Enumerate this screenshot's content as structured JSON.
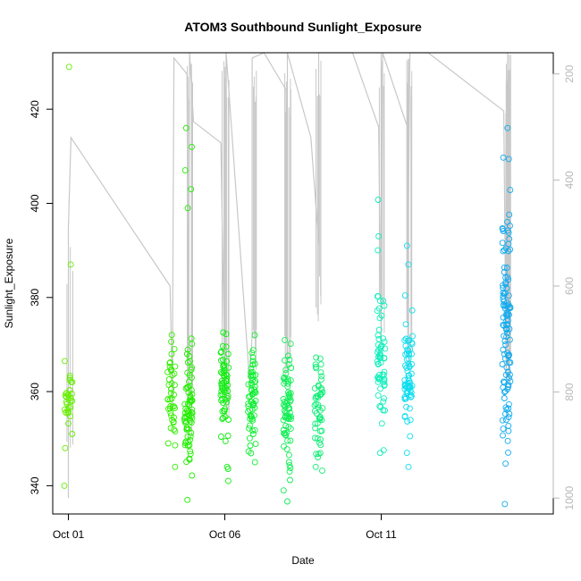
{
  "chart_data": {
    "type": "scatter",
    "title": "ATOM3 Southbound Sunlight_Exposure",
    "xlabel": "Date",
    "ylabel": "Sunlight_Exposure",
    "ylim": [
      334,
      432
    ],
    "xlim_days": [
      "2023-09-30T12:00",
      "2023-10-16T12:00"
    ],
    "x_ticks": [
      {
        "date": "2023-10-01T00:00",
        "label": "Oct 01"
      },
      {
        "date": "2023-10-06T00:00",
        "label": "Oct 06"
      },
      {
        "date": "2023-10-11T00:00",
        "label": "Oct 11"
      }
    ],
    "y_ticks": [
      340,
      360,
      380,
      400,
      420
    ],
    "y2_ticks": [
      200,
      400,
      600,
      800,
      1000
    ],
    "y2lim": [
      1030,
      160
    ],
    "y2_inverted": true,
    "secondary_series_color": "#c8c8c8",
    "point_colors": [
      "#7fff00",
      "#00ff00",
      "#00ffff",
      "#00bfff"
    ],
    "point_clusters": [
      {
        "date": "2023-10-01T00:00",
        "mean": 359,
        "sd": 4,
        "n": 30,
        "color": "#66ee00",
        "extras": [
          340,
          348,
          351,
          387,
          429
        ]
      },
      {
        "date": "2023-10-04T07:00",
        "mean": 359,
        "sd": 6,
        "n": 40,
        "color": "#33ee00",
        "extras": [
          344,
          349,
          354
        ]
      },
      {
        "date": "2023-10-04T20:00",
        "mean": 356,
        "sd": 6,
        "n": 70,
        "color": "#22ee00",
        "extras": [
          337,
          368,
          399,
          403,
          407,
          412,
          416
        ]
      },
      {
        "date": "2023-10-06T00:00",
        "mean": 361,
        "sd": 5,
        "n": 60,
        "color": "#11ee11",
        "extras": [
          341,
          344,
          368
        ]
      },
      {
        "date": "2023-10-06T21:00",
        "mean": 359,
        "sd": 5,
        "n": 60,
        "color": "#11ee33",
        "extras": [
          345,
          351,
          372
        ]
      },
      {
        "date": "2023-10-08T00:00",
        "mean": 357,
        "sd": 6,
        "n": 70,
        "color": "#11ee55",
        "extras": [
          339,
          343
        ]
      },
      {
        "date": "2023-10-09T00:00",
        "mean": 356,
        "sd": 5,
        "n": 50,
        "color": "#11ee77",
        "extras": [
          344,
          367
        ]
      },
      {
        "date": "2023-10-11T00:00",
        "mean": 368,
        "sd": 10,
        "n": 60,
        "color": "#11eebb",
        "extras": [
          356,
          390,
          393
        ]
      },
      {
        "date": "2023-10-11T21:00",
        "mean": 362,
        "sd": 6,
        "n": 70,
        "color": "#11ddee",
        "extras": [
          347,
          387,
          391
        ]
      },
      {
        "date": "2023-10-15T00:00",
        "mean": 376,
        "sd": 14,
        "n": 110,
        "color": "#11aaee",
        "extras": [
          354,
          416
        ]
      }
    ],
    "secondary_polyline": [
      [
        "2023-10-01T00:00",
        1000
      ],
      [
        "2023-10-01T00:00",
        490
      ],
      [
        "2023-10-01T02:00",
        320
      ],
      [
        "2023-10-04T06:00",
        600
      ],
      [
        "2023-10-04T08:00",
        830
      ],
      [
        "2023-10-04T08:00",
        650
      ],
      [
        "2023-10-04T09:00",
        170
      ],
      [
        "2023-10-04T19:00",
        200
      ],
      [
        "2023-10-04T20:00",
        740
      ],
      [
        "2023-10-04T21:00",
        160
      ],
      [
        "2023-10-05T00:00",
        290
      ],
      [
        "2023-10-05T21:00",
        330
      ],
      [
        "2023-10-06T00:00",
        780
      ],
      [
        "2023-10-06T01:00",
        160
      ],
      [
        "2023-10-06T19:00",
        780
      ],
      [
        "2023-10-06T21:00",
        690
      ],
      [
        "2023-10-06T21:00",
        170
      ],
      [
        "2023-10-07T06:00",
        160
      ],
      [
        "2023-10-07T23:00",
        230
      ],
      [
        "2023-10-08T00:00",
        760
      ],
      [
        "2023-10-08T00:00",
        160
      ],
      [
        "2023-10-08T18:00",
        320
      ],
      [
        "2023-10-09T00:00",
        520
      ],
      [
        "2023-10-09T00:00",
        160
      ],
      [
        "2023-10-10T02:00",
        160
      ],
      [
        "2023-10-10T22:00",
        300
      ],
      [
        "2023-10-11T00:00",
        710
      ],
      [
        "2023-10-11T01:00",
        160
      ],
      [
        "2023-10-11T20:00",
        300
      ],
      [
        "2023-10-11T20:00",
        670
      ],
      [
        "2023-10-11T22:00",
        160
      ],
      [
        "2023-10-12T12:00",
        160
      ],
      [
        "2023-10-14T22:00",
        270
      ],
      [
        "2023-10-15T00:00",
        800
      ],
      [
        "2023-10-15T01:00",
        160
      ]
    ],
    "secondary_spikes": [
      {
        "date": "2023-10-01T00:00",
        "from": 1000,
        "to": 490,
        "n": 3
      },
      {
        "date": "2023-10-04T20:00",
        "from": 900,
        "to": 160,
        "n": 12
      },
      {
        "date": "2023-10-06T00:00",
        "from": 850,
        "to": 160,
        "n": 10
      },
      {
        "date": "2023-10-06T21:00",
        "from": 760,
        "to": 170,
        "n": 6
      },
      {
        "date": "2023-10-08T00:00",
        "from": 800,
        "to": 160,
        "n": 10
      },
      {
        "date": "2023-10-09T00:00",
        "from": 720,
        "to": 160,
        "n": 6
      },
      {
        "date": "2023-10-11T00:00",
        "from": 760,
        "to": 160,
        "n": 6
      },
      {
        "date": "2023-10-11T21:00",
        "from": 780,
        "to": 160,
        "n": 10
      },
      {
        "date": "2023-10-15T00:00",
        "from": 800,
        "to": 160,
        "n": 12
      }
    ]
  }
}
